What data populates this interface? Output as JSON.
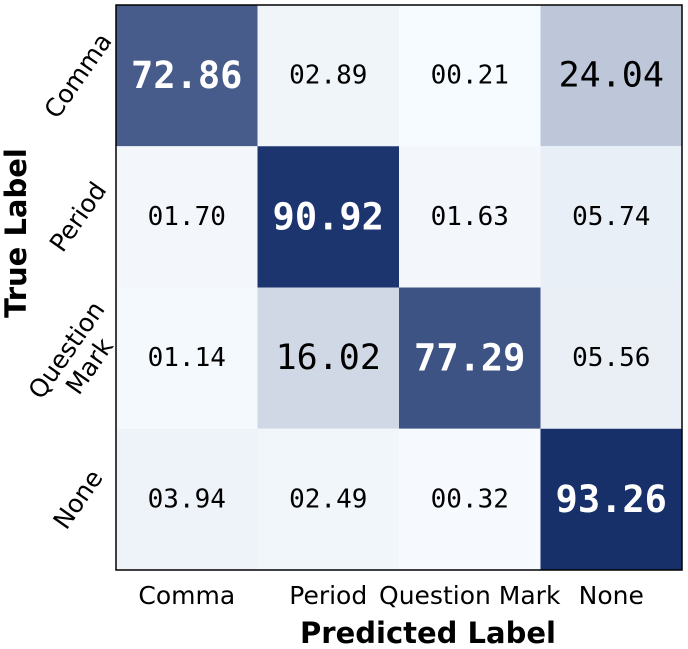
{
  "chart_data": {
    "type": "heatmap",
    "xlabel": "Predicted Label",
    "ylabel": "True Label",
    "x_categories": [
      "Comma",
      "Period",
      "Question Mark",
      "None"
    ],
    "y_categories": [
      "Comma",
      "Period",
      "Question Mark",
      "None"
    ],
    "y_tick_lines": [
      [
        "Comma"
      ],
      [
        "Period"
      ],
      [
        "Question",
        "Mark"
      ],
      [
        "None"
      ]
    ],
    "values": [
      [
        72.86,
        2.89,
        0.21,
        24.04
      ],
      [
        1.7,
        90.92,
        1.63,
        5.74
      ],
      [
        1.14,
        16.02,
        77.29,
        5.56
      ],
      [
        3.94,
        2.49,
        0.32,
        93.26
      ]
    ],
    "cell_labels": [
      [
        "72.86",
        "02.89",
        "00.21",
        "24.04"
      ],
      [
        "01.70",
        "90.92",
        "01.63",
        "05.74"
      ],
      [
        "01.14",
        "16.02",
        "77.29",
        "05.56"
      ],
      [
        "03.94",
        "02.49",
        "00.32",
        "93.26"
      ]
    ],
    "colormap": "Blues",
    "color_low": "#f7fbff",
    "color_high": "#17306a",
    "vmin": 0,
    "vmax": 93.26,
    "grid": false
  }
}
